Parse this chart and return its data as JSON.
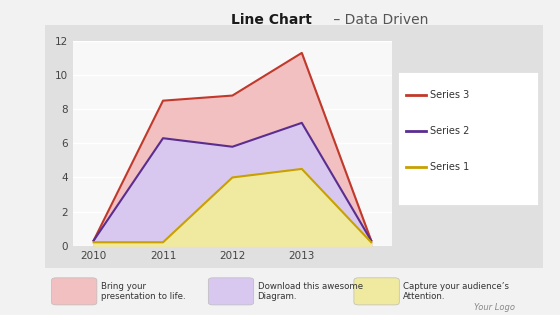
{
  "title_bold": "Line Chart",
  "title_light": " – Data Driven",
  "x_values": [
    2010,
    2011,
    2012,
    2013,
    2014
  ],
  "series3_y": [
    0.3,
    8.5,
    8.8,
    11.3,
    0.3
  ],
  "series2_y": [
    0.3,
    6.3,
    5.8,
    7.2,
    0.3
  ],
  "series1_y": [
    0.2,
    0.2,
    4.0,
    4.5,
    0.2
  ],
  "series3_color": "#c0392b",
  "series2_color": "#5b2d8e",
  "series1_color": "#c8a000",
  "series3_fill": "#f2c0c0",
  "series2_fill": "#d8c8f0",
  "series1_fill": "#f0eaa0",
  "ylim": [
    0,
    12
  ],
  "yticks": [
    0,
    2,
    4,
    6,
    8,
    10,
    12
  ],
  "xticks": [
    2010,
    2011,
    2012,
    2013
  ],
  "legend_labels": [
    "Series 3",
    "Series 2",
    "Series 1"
  ],
  "bg_color": "#f2f2f2",
  "plot_bg_color": "#e0e0e0",
  "chart_bg_color": "#f8f8f8",
  "footer_items": [
    {
      "color": "#f2c0c0",
      "text": "Bring your\npresentation to life."
    },
    {
      "color": "#d8c8f0",
      "text": "Download this awesome\nDiagram."
    },
    {
      "color": "#f0eaa0",
      "text": "Capture your audience’s\nAttention."
    }
  ],
  "watermark": "Your Logo"
}
